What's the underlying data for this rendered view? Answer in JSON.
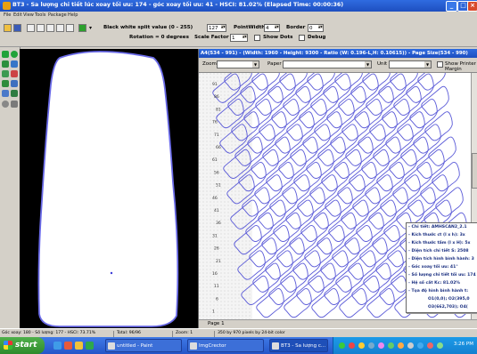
{
  "window": {
    "title": "BT3 - Sa lượng chi tiết lúc xoay tối ưu: 174 - góc xoay tối ưu: 41 - HSCI: 81.02% (Elapsed Time: 00:00:36)"
  },
  "menu": [
    "File",
    "Edit",
    "View",
    "Tools",
    "Package",
    "Help"
  ],
  "toolbar": {
    "split_label": "Black white split value (0 - 255)",
    "split_value": "127",
    "pointwidth_label": "PointWidth",
    "pointwidth_value": "4",
    "border_label": "Border",
    "border_value": "0",
    "rotation_label": "Rotation = 0 degrees",
    "scale_label": "Scale Factor",
    "scale_value": "1",
    "show_dots_label": "Show Dots",
    "debug_label": "Debug"
  },
  "nest_window": {
    "title": "A4(534 - 991) - (Width: 1960 - Height: 9300 - Ratio (W: 0.196-L,H: 0.10615)) - Page Size(534 - 990)",
    "zoom_label": "Zoom",
    "paper_label": "Paper",
    "unit_label": "Unit",
    "show_printer_label": "Show Printer Margin",
    "page_label": "Page 1",
    "cells": [
      "91",
      "86",
      "81",
      "76",
      "71",
      "66",
      "61",
      "56",
      "51",
      "46",
      "41",
      "36",
      "31",
      "26",
      "21",
      "16",
      "11",
      "6",
      "1"
    ]
  },
  "info_panel": {
    "lines": [
      "- Chi tiết: AMHSCAN2_2.1",
      "- Kích thước ct (l x h): 3x",
      "- Kích thước tấm (l x H): 5x",
      "- Diện tích chi tiết S: 2508",
      "- Diện tích hình bình hành: 3",
      "- Góc xoay tối ưu: 41°",
      "- Số lượng chi tiết tối ưu: 174",
      "- Hệ số cắt Kc: 81.02%",
      "- Tọa độ hình bình hành t:",
      "O1(0,0); O2(395,0",
      "O3(662,703); O4("
    ]
  },
  "statusbar": {
    "seg1": "Góc xoay: 180 - Số lượng: 177 - HSCI: 73.71%",
    "seg2": "Total: 96/96",
    "seg3": "Zoom: 1",
    "seg4": "350 by 970 pixels by 24-bit color"
  },
  "taskbar": {
    "start_label": "start",
    "tasks": [
      "untitled - Paint",
      "ImgCrector",
      "BT3 - Sa lượng c..."
    ],
    "clock": "3:26 PM"
  }
}
